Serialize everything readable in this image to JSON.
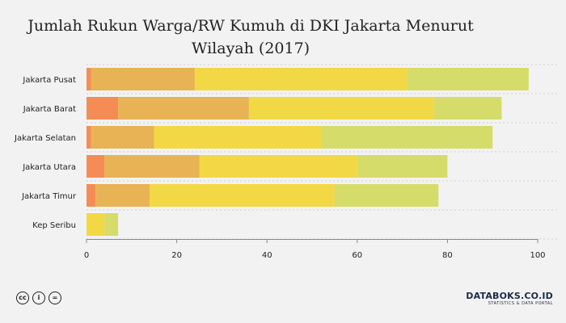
{
  "chart_data": {
    "type": "bar",
    "orientation": "horizontal",
    "stacked": true,
    "title_lines": [
      "Jumlah Rukun Warga/RW Kumuh di DKI Jakarta Menurut",
      "Wilayah (2017)"
    ],
    "categories": [
      "Jakarta Pusat",
      "Jakarta Barat",
      "Jakarta Selatan",
      "Jakarta Utara",
      "Jakarta Timur",
      "Kep Seribu"
    ],
    "series": [
      {
        "values": [
          1,
          7,
          1,
          4,
          2,
          0
        ],
        "color": "#f58c55"
      },
      {
        "values": [
          23,
          29,
          14,
          21,
          12,
          0
        ],
        "color": "#e8b354"
      },
      {
        "values": [
          47,
          41,
          37,
          35,
          41,
          4
        ],
        "color": "#f3d845"
      },
      {
        "values": [
          27,
          15,
          38,
          20,
          23,
          3
        ],
        "color": "#d6dc69"
      }
    ],
    "xlim": [
      0,
      100
    ],
    "x_ticks": [
      "0",
      "20",
      "40",
      "60",
      "80",
      "100"
    ],
    "grid": true,
    "legend": "none"
  },
  "footer": {
    "license_icons": [
      "cc-icon",
      "by-icon",
      "equals-icon"
    ],
    "license_glyphs": [
      "cc",
      "i",
      "="
    ],
    "brand": "DATABOKS.CO.ID",
    "brand_tagline": "STATISTICS & DATA PORTAL"
  }
}
